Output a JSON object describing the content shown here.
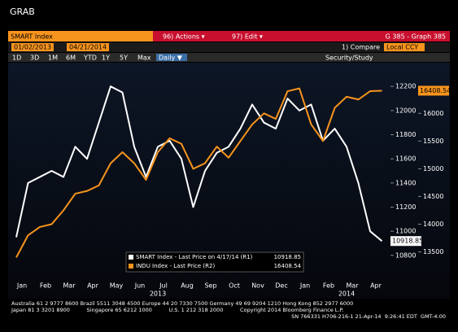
{
  "header": {
    "title": "GRAB"
  },
  "toolbar": {
    "security": "SMART Index",
    "actions": "96) Actions ▾",
    "edit": "97) Edit ▾",
    "graph": "G 385 - Graph 385",
    "start_date": "01/02/2013",
    "end_date": "04/21/2014",
    "compare": "1) Compare",
    "currency": "Local CCY",
    "periods": [
      "1D",
      "3D",
      "1M",
      "6M",
      "YTD",
      "1Y",
      "5Y",
      "Max"
    ],
    "frequency": "Daily ▼",
    "study": "Security/Study"
  },
  "chart_data": {
    "type": "line",
    "categories": [
      "Jan",
      null,
      "Feb",
      null,
      "Mar",
      null,
      "Apr",
      null,
      "May",
      null,
      "Jun",
      null,
      "Jul",
      null,
      "Aug",
      null,
      "Sep",
      null,
      "Oct",
      null,
      "Nov",
      null,
      "Dec",
      null,
      "Jan",
      null,
      "Feb",
      null,
      "Mar",
      null,
      "Apr",
      null
    ],
    "years": [
      {
        "label": "2013",
        "index": 12
      },
      {
        "label": "2014",
        "index": 28
      }
    ],
    "series": [
      {
        "name": "SMART Index - Last Price on 4/17/14 (R1)",
        "color": "#ffffff",
        "values": [
          10950,
          11400,
          11450,
          11500,
          11450,
          11700,
          11600,
          11900,
          12200,
          12150,
          11700,
          11450,
          11700,
          11750,
          11600,
          11200,
          11500,
          11650,
          11700,
          11850,
          12050,
          11900,
          11850,
          12100,
          12000,
          12050,
          11750,
          11850,
          11700,
          11400,
          11000,
          10918.85
        ]
      },
      {
        "name": "INDU Index - Last Price (R2)",
        "color": "#f7941d",
        "axis": "y2",
        "values": [
          13400,
          13800,
          13950,
          14000,
          14250,
          14550,
          14600,
          14700,
          15100,
          15300,
          15100,
          14800,
          15300,
          15550,
          15450,
          15000,
          15100,
          15400,
          15200,
          15500,
          15800,
          16000,
          15900,
          16400,
          16450,
          15800,
          15500,
          16100,
          16300,
          16250,
          16400,
          16408.54
        ]
      }
    ],
    "ylim": [
      10590,
      12390
    ],
    "yticks": [
      10800,
      11000,
      11200,
      11400,
      11600,
      11800,
      12000,
      12200
    ],
    "y2lim": [
      12980,
      16900
    ],
    "y2ticks": [
      13500,
      14000,
      14500,
      15000,
      15500,
      16000
    ]
  },
  "footer": {
    "lines": [
      "Australia 61 2 9777 8600 Brazil 5511 3048 4500 Europe 44 20 7330 7500 Germany 49 69 9204 1210 Hong Kong 852 2977 6000",
      "Japan 81 3 3201 8900          Singapore 65 6212 1000          U.S. 1 212 318 2000          Copyright 2014 Bloomberg Finance L.P.",
      "SN 766331 H706-216-1 21-Apr-14  9:26:41 EDT  GMT-4:00"
    ]
  }
}
